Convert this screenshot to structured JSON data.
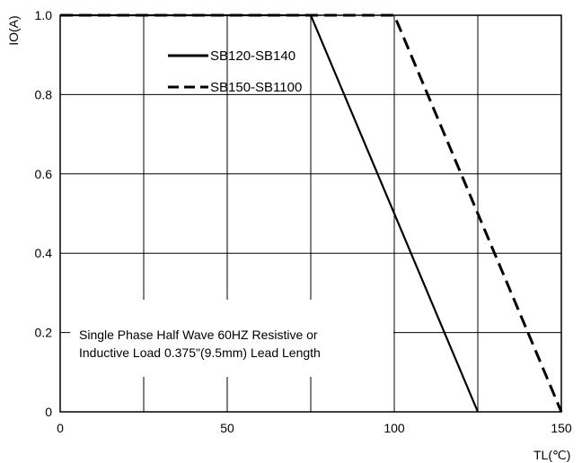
{
  "chart_data": {
    "type": "line",
    "title": "",
    "xlabel": "TL(℃)",
    "ylabel": "IO(A)",
    "xlim": [
      0,
      150
    ],
    "ylim": [
      0,
      1.0
    ],
    "x_ticks": [
      0,
      50,
      100,
      150
    ],
    "y_ticks": [
      "0",
      "0.2",
      "0.4",
      "0.6",
      "0.8",
      "1.0"
    ],
    "x_tick_labels": [
      "0",
      "50",
      "100",
      "150"
    ],
    "grid": true,
    "legend_position": "top-center",
    "series": [
      {
        "name": "SB120-SB140",
        "style": "solid",
        "x": [
          0,
          75,
          125
        ],
        "y": [
          1.0,
          1.0,
          0
        ]
      },
      {
        "name": "SB150-SB1100",
        "style": "dashed",
        "x": [
          0,
          100,
          150
        ],
        "y": [
          1.0,
          1.0,
          0
        ]
      }
    ],
    "annotation": [
      "Single Phase Half Wave  60HZ Resistive or",
      "Inductive Load 0.375\"(9.5mm) Lead Length"
    ]
  }
}
